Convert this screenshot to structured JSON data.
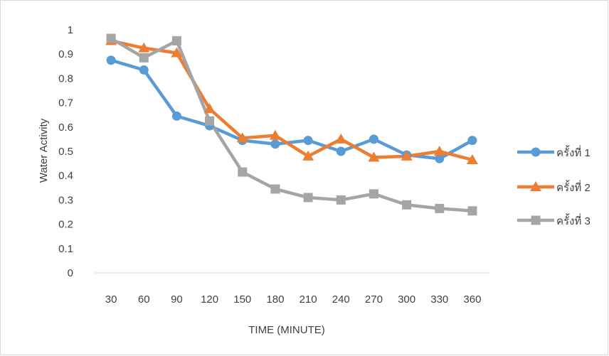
{
  "chart_data": {
    "type": "line",
    "title": "",
    "xlabel": "TIME (MINUTE)",
    "ylabel": "Water Activity",
    "x": [
      30,
      60,
      90,
      120,
      150,
      180,
      210,
      240,
      270,
      300,
      330,
      360
    ],
    "x_tick_labels": [
      "30",
      "60",
      "90",
      "120",
      "150",
      "180",
      "210",
      "240",
      "270",
      "300",
      "330",
      "360"
    ],
    "ylim": [
      0,
      1
    ],
    "y_ticks": [
      0,
      0.1,
      0.2,
      0.3,
      0.4,
      0.5,
      0.6,
      0.7,
      0.8,
      0.9,
      1
    ],
    "y_tick_labels": [
      "0",
      "0.1",
      "0.2",
      "0.3",
      "0.4",
      "0.5",
      "0.6",
      "0.7",
      "0.8",
      "0.9",
      "1"
    ],
    "grid": false,
    "legend_position": "right",
    "series": [
      {
        "name": "ครั้งที่ 1",
        "color": "#5b9bd5",
        "marker": "circle",
        "values": [
          0.875,
          0.835,
          0.645,
          0.605,
          0.545,
          0.53,
          0.545,
          0.5,
          0.55,
          0.485,
          0.47,
          0.545
        ]
      },
      {
        "name": "ครั้งที่ 2",
        "color": "#ed7d31",
        "marker": "triangle",
        "values": [
          0.955,
          0.925,
          0.905,
          0.675,
          0.555,
          0.565,
          0.48,
          0.55,
          0.475,
          0.48,
          0.5,
          0.465
        ]
      },
      {
        "name": "ครั้งที่ 3",
        "color": "#a5a5a5",
        "marker": "square",
        "values": [
          0.965,
          0.885,
          0.955,
          0.625,
          0.415,
          0.345,
          0.31,
          0.3,
          0.325,
          0.28,
          0.265,
          0.255
        ]
      }
    ]
  }
}
